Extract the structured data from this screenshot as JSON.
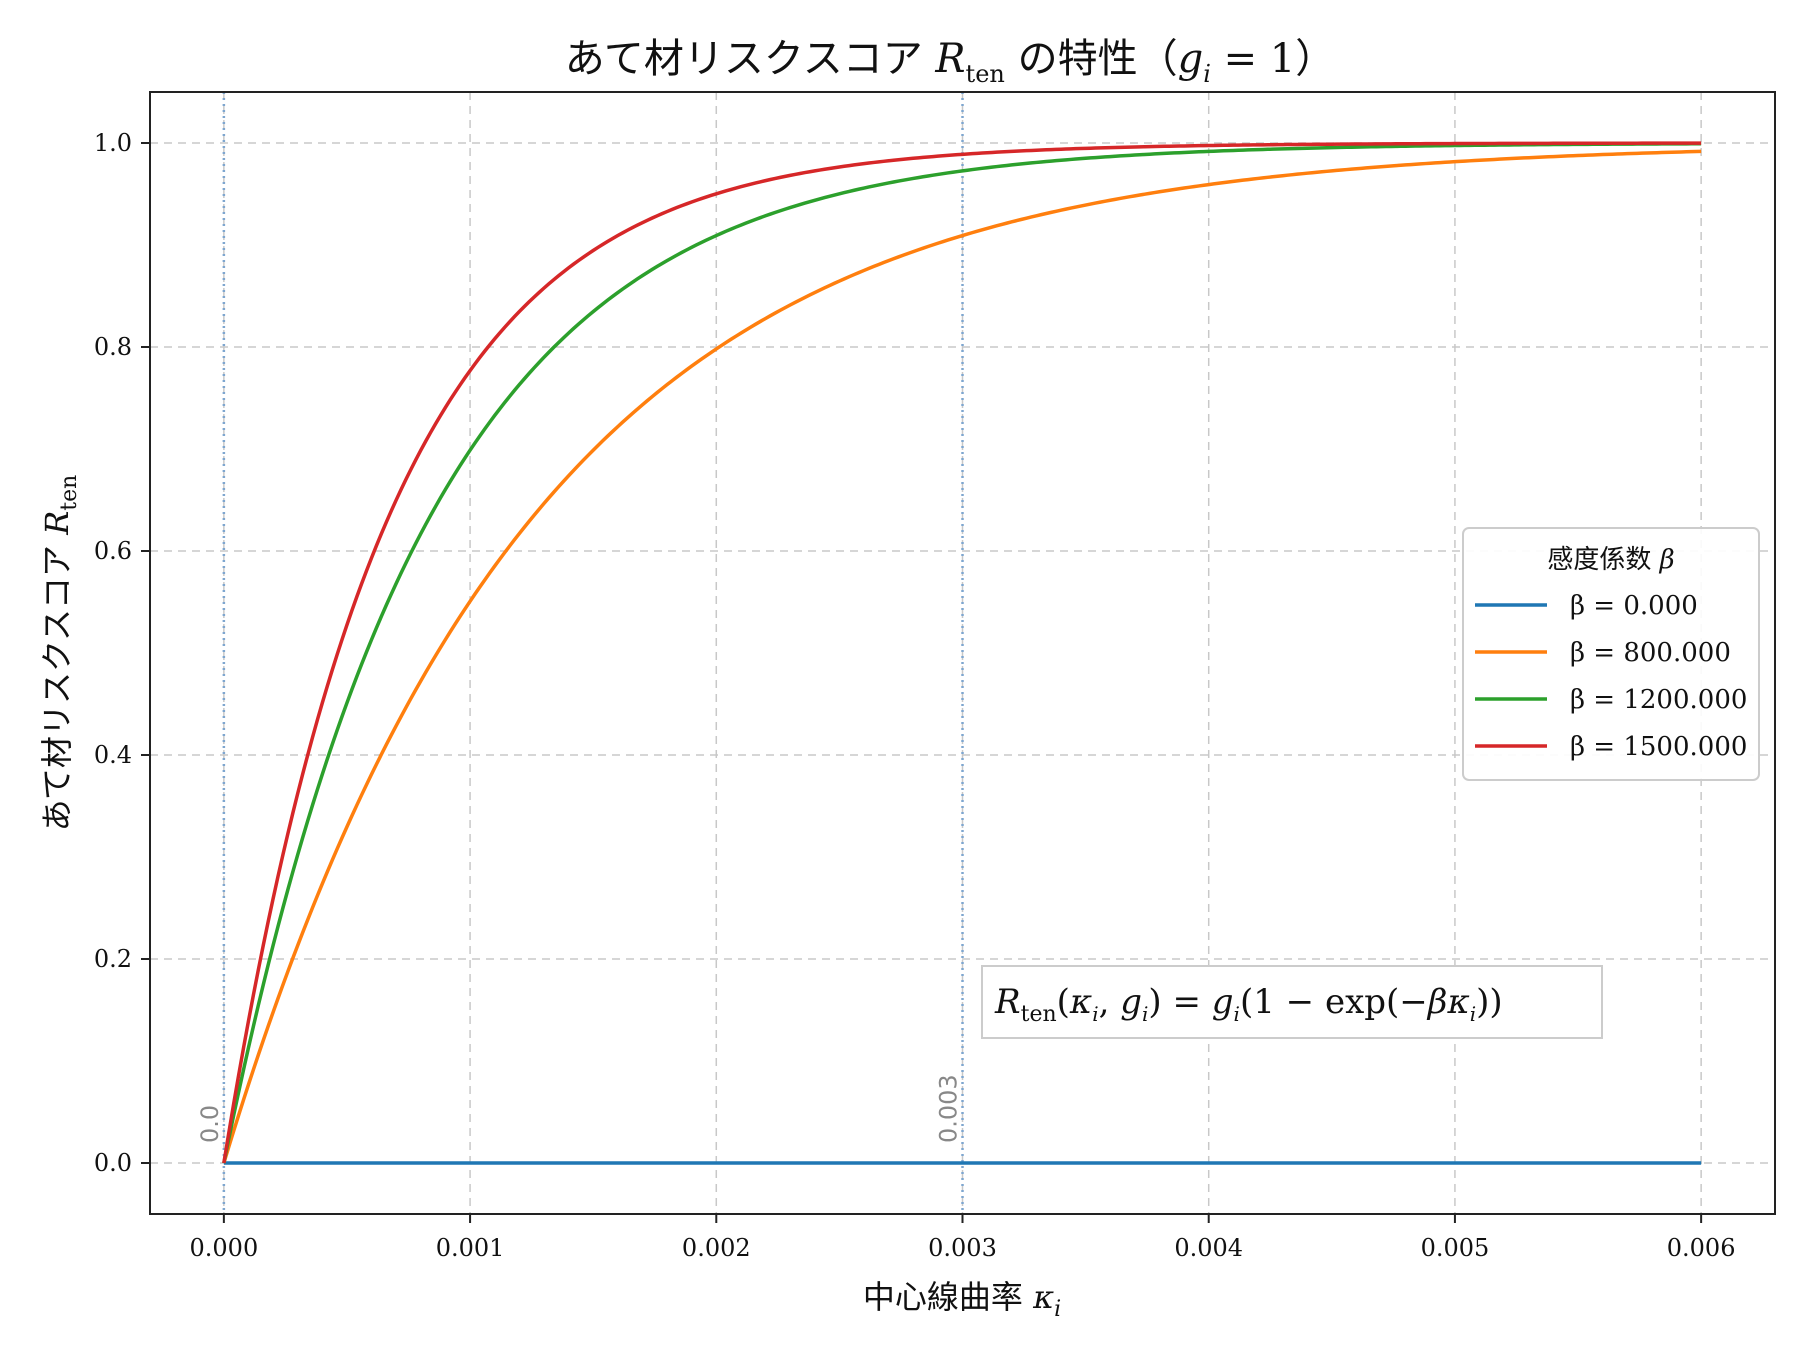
{
  "chart_data": {
    "type": "line",
    "title": "あて材リスクスコア R_ten の特性（g_i = 1）",
    "xlabel": "中心線曲率 κ_i",
    "ylabel": "あて材リスクスコア R_ten",
    "xlim": [
      -0.0003,
      0.0063
    ],
    "ylim": [
      -0.05,
      1.05
    ],
    "x_ticks": [
      "0.000",
      "0.001",
      "0.002",
      "0.003",
      "0.004",
      "0.005",
      "0.006"
    ],
    "y_ticks": [
      "0.0",
      "0.2",
      "0.4",
      "0.6",
      "0.8",
      "1.0"
    ],
    "grid": true,
    "legend": {
      "title": "感度係数 β",
      "placement": "center-right"
    },
    "x_range": [
      0,
      0.006
    ],
    "function": "R_ten(κ_i, g_i) = g_i (1 − exp(−β κ_i)), g_i = 1",
    "series": [
      {
        "name": "β = 0.000",
        "beta": 0,
        "color": "#1f77b4"
      },
      {
        "name": "β = 800.000",
        "beta": 800,
        "color": "#ff7f0e"
      },
      {
        "name": "β = 1200.000",
        "beta": 1200,
        "color": "#2ca02c"
      },
      {
        "name": "β = 1500.000",
        "beta": 1500,
        "color": "#d62728"
      }
    ],
    "vertical_markers": [
      {
        "x": 0.0,
        "label": "0.0"
      },
      {
        "x": 0.003,
        "label": "0.003"
      }
    ],
    "annotation": "R_ten(κ_i, g_i) = g_i(1 − exp(−βκ_i))"
  }
}
